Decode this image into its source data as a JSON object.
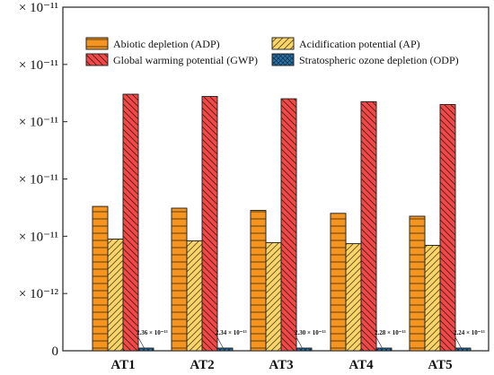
{
  "chart_data": {
    "type": "bar",
    "title": "",
    "xlabel": "",
    "ylabel": "",
    "categories": [
      "AT1",
      "AT2",
      "AT3",
      "AT4",
      "AT5"
    ],
    "ylim": [
      0,
      6e-11
    ],
    "y_tick_values": [
      0,
      1e-11,
      2e-11,
      3e-11,
      4e-11,
      5e-11,
      6e-11
    ],
    "y_tick_labels": [
      "0",
      "× 10⁻¹²",
      "× 10⁻¹¹",
      "× 10⁻¹¹",
      "× 10⁻¹¹",
      "× 10⁻¹¹",
      "× 10⁻¹¹"
    ],
    "grid": false,
    "legend_position": "top",
    "series": [
      {
        "name": "Abiotic depletion (ADP)",
        "color": "#f5951f",
        "pattern": "horizontal-lines",
        "values": [
          2.52e-11,
          2.49e-11,
          2.45e-11,
          2.4e-11,
          2.35e-11
        ]
      },
      {
        "name": "Acidification potential (AP)",
        "color": "#f9d46b",
        "pattern": "diagonal-lines",
        "values": [
          1.95e-11,
          1.92e-11,
          1.89e-11,
          1.87e-11,
          1.84e-11
        ]
      },
      {
        "name": "Global warming potential (GWP)",
        "color": "#ee4a4a",
        "pattern": "diagonal-lines-reverse",
        "values": [
          4.48e-11,
          4.44e-11,
          4.4e-11,
          4.35e-11,
          4.3e-11
        ]
      },
      {
        "name": "Stratospheric ozone depletion (ODP)",
        "color": "#2a72a8",
        "pattern": "crosshatch",
        "values": [
          2.36e-13,
          2.34e-13,
          2.3e-13,
          2.28e-13,
          2.24e-13
        ]
      }
    ],
    "annotations": [
      "2.36 × 10⁻¹³",
      "2.34 × 10⁻¹³",
      "2.30 × 10⁻¹³",
      "2.28 × 10⁻¹³",
      "2.24 × 10⁻¹³"
    ]
  }
}
